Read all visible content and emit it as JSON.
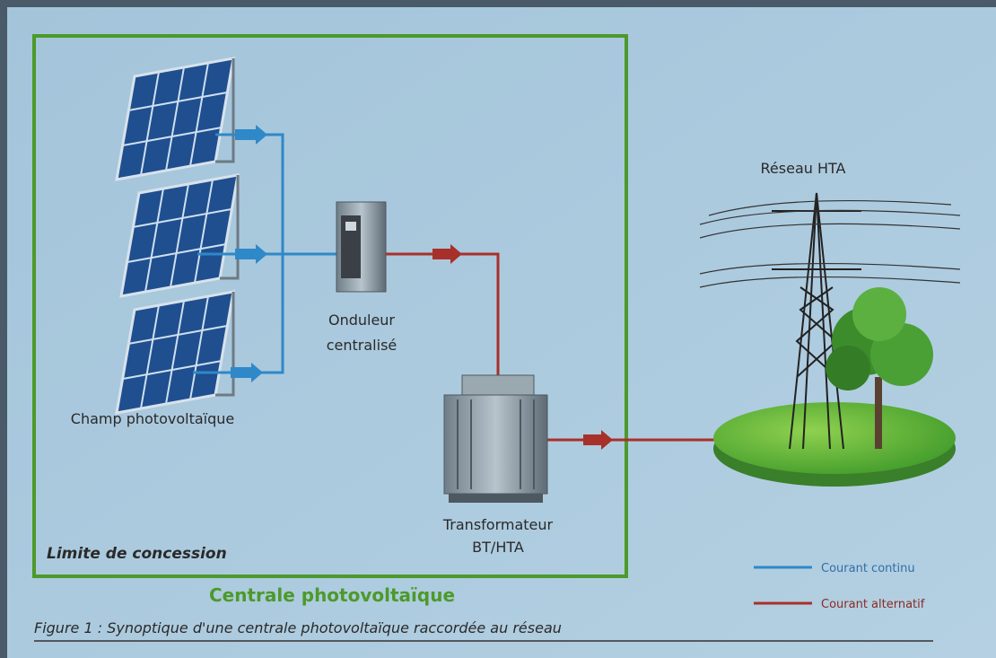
{
  "network_label": "Réseau HTA",
  "inverter_label": [
    "Onduleur",
    "centralisé"
  ],
  "field_label": "Champ photovoltaïque",
  "transformer_label": [
    "Transformateur",
    "BT/HTA"
  ],
  "boundary_label": "Limite de concession",
  "plant_label": "Centrale photovoltaïque",
  "legend": [
    "Courant continu",
    "Courant alternatif"
  ],
  "caption": "Figure 1 : Synoptique d'une centrale photovoltaïque raccordée au réseau"
}
